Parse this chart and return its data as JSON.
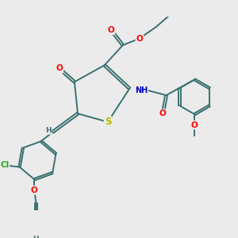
{
  "bg_color": "#ebebeb",
  "bond_color": "#3a7070",
  "bond_width": 1.4,
  "dbo": 0.035,
  "atom_colors": {
    "O": "#ff0000",
    "S": "#b8b800",
    "N": "#0000cc",
    "Cl": "#22aa22",
    "C": "#3a7070",
    "H": "#3a7070"
  },
  "font_size": 7.5,
  "fig_size": [
    3.0,
    3.0
  ],
  "dpi": 100
}
